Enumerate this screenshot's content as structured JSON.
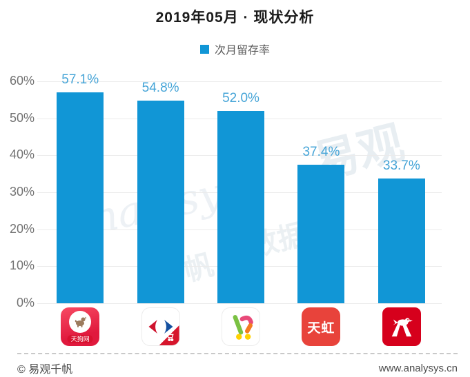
{
  "title": "2019年05月 · 现状分析",
  "legend": {
    "label": "次月留存率",
    "swatch_color": "#1196d6"
  },
  "chart_data": {
    "type": "bar",
    "title": "2019年05月 · 现状分析",
    "series_name": "次月留存率",
    "categories": [
      "tiangou-app",
      "carrefour-app",
      "colorful-cart-app",
      "tianhong-app",
      "auchan-app"
    ],
    "values": [
      57.1,
      54.8,
      52.0,
      37.4,
      33.7
    ],
    "value_labels": [
      "57.1%",
      "54.8%",
      "52.0%",
      "37.4%",
      "33.7%"
    ],
    "ylim": [
      0,
      60
    ],
    "ytick_labels": [
      "60%",
      "50%",
      "40%",
      "30%",
      "20%",
      "10%",
      "0%"
    ],
    "grid": true,
    "legend_position": "top",
    "bar_color": "#1196d6",
    "value_label_color": "#45a4d7",
    "axis_label_color": "#737373"
  },
  "icons": {
    "tiangou_ribbon_text": "天狗网",
    "tianhong_text": "天虹"
  },
  "watermark": {
    "text_primary": "易观",
    "text_script": "analysys",
    "text_secondary": "数据",
    "text_tertiary": "千帆"
  },
  "footer": {
    "left": "© 易观千帆",
    "right": "www.analysys.cn"
  }
}
